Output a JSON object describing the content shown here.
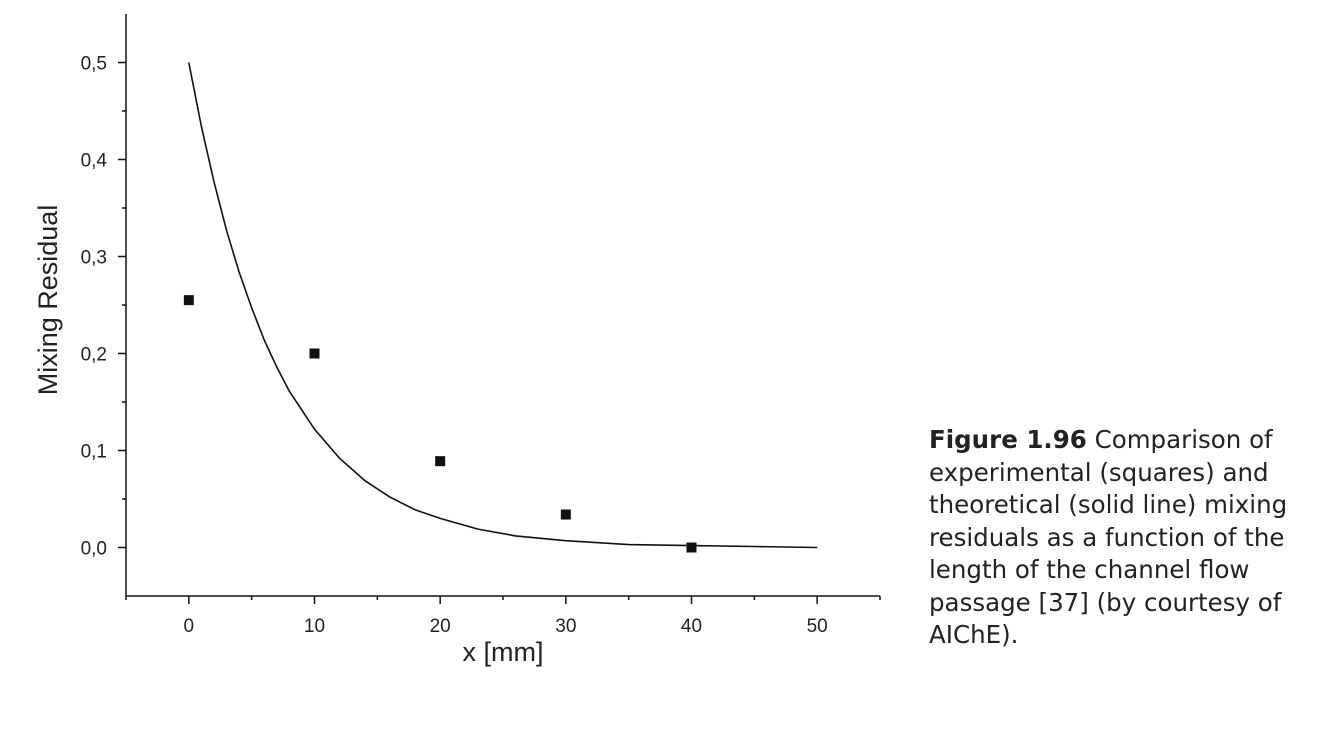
{
  "chart_data": {
    "type": "scatter",
    "xlabel": "x [mm]",
    "ylabel": "Mixing Residual",
    "xlim": [
      -5,
      55
    ],
    "ylim": [
      -0.05,
      0.55
    ],
    "x_ticks": [
      0,
      10,
      20,
      30,
      40,
      50
    ],
    "x_tick_labels": [
      "0",
      "10",
      "20",
      "30",
      "40",
      "50"
    ],
    "y_ticks": [
      0.0,
      0.1,
      0.2,
      0.3,
      0.4,
      0.5
    ],
    "y_tick_labels": [
      "0,0",
      "0,1",
      "0,2",
      "0,3",
      "0,4",
      "0,5"
    ],
    "grid": false,
    "series": [
      {
        "kind": "scatter",
        "marker": "square",
        "points": [
          {
            "x": 0,
            "y": 0.255
          },
          {
            "x": 10,
            "y": 0.2
          },
          {
            "x": 20,
            "y": 0.089
          },
          {
            "x": 30,
            "y": 0.034
          },
          {
            "x": 40,
            "y": 0.0
          }
        ]
      },
      {
        "kind": "line",
        "style": "solid",
        "points": [
          {
            "x": 0,
            "y": 0.5
          },
          {
            "x": 1,
            "y": 0.434
          },
          {
            "x": 2,
            "y": 0.377
          },
          {
            "x": 3,
            "y": 0.327
          },
          {
            "x": 4,
            "y": 0.284
          },
          {
            "x": 5,
            "y": 0.247
          },
          {
            "x": 6,
            "y": 0.214
          },
          {
            "x": 7,
            "y": 0.186
          },
          {
            "x": 8,
            "y": 0.161
          },
          {
            "x": 10,
            "y": 0.122
          },
          {
            "x": 12,
            "y": 0.092
          },
          {
            "x": 14,
            "y": 0.069
          },
          {
            "x": 16,
            "y": 0.052
          },
          {
            "x": 18,
            "y": 0.039
          },
          {
            "x": 20,
            "y": 0.03
          },
          {
            "x": 23,
            "y": 0.019
          },
          {
            "x": 26,
            "y": 0.012
          },
          {
            "x": 30,
            "y": 0.007
          },
          {
            "x": 35,
            "y": 0.003
          },
          {
            "x": 40,
            "y": 0.002
          },
          {
            "x": 45,
            "y": 0.001
          },
          {
            "x": 50,
            "y": 0.0
          }
        ]
      }
    ],
    "colors": {
      "markers": "#111111",
      "line": "#111111",
      "axes": "#111111"
    }
  },
  "caption": {
    "label": "Figure 1.96",
    "text": "Comparison of experimental (squares) and theoretical (solid line) mixing residuals as a function of the length of the channel flow passage [37] (by courtesy of AIChE)."
  }
}
